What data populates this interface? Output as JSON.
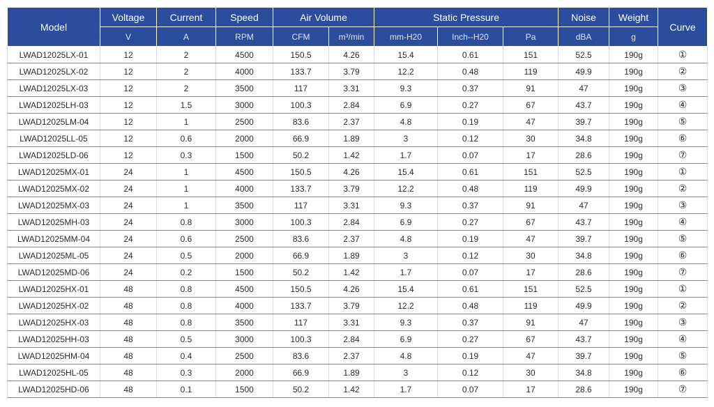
{
  "headers": {
    "model": "Model",
    "voltage": "Voltage",
    "current": "Current",
    "speed": "Speed",
    "air_volume": "Air Volume",
    "static_pressure": "Static Pressure",
    "noise": "Noise",
    "weight": "Weight",
    "curve": "Curve"
  },
  "units": [
    "V",
    "A",
    "RPM",
    "CFM",
    "m³/min",
    "mm-H20",
    "Inch--H20",
    "Pa",
    "dBA",
    "g"
  ],
  "rows": [
    [
      "LWAD12025LX-01",
      "12",
      "2",
      "4500",
      "150.5",
      "4.26",
      "15.4",
      "0.61",
      "151",
      "52.5",
      "190g",
      "①"
    ],
    [
      "LWAD12025LX-02",
      "12",
      "2",
      "4000",
      "133.7",
      "3.79",
      "12.2",
      "0.48",
      "119",
      "49.9",
      "190g",
      "②"
    ],
    [
      "LWAD12025LX-03",
      "12",
      "2",
      "3500",
      "117",
      "3.31",
      "9.3",
      "0.37",
      "91",
      "47",
      "190g",
      "③"
    ],
    [
      "LWAD12025LH-03",
      "12",
      "1.5",
      "3000",
      "100.3",
      "2.84",
      "6.9",
      "0.27",
      "67",
      "43.7",
      "190g",
      "④"
    ],
    [
      "LWAD12025LM-04",
      "12",
      "1",
      "2500",
      "83.6",
      "2.37",
      "4.8",
      "0.19",
      "47",
      "39.7",
      "190g",
      "⑤"
    ],
    [
      "LWAD12025LL-05",
      "12",
      "0.6",
      "2000",
      "66.9",
      "1.89",
      "3",
      "0.12",
      "30",
      "34.8",
      "190g",
      "⑥"
    ],
    [
      "LWAD12025LD-06",
      "12",
      "0.3",
      "1500",
      "50.2",
      "1.42",
      "1.7",
      "0.07",
      "17",
      "28.6",
      "190g",
      "⑦"
    ],
    [
      "LWAD12025MX-01",
      "24",
      "1",
      "4500",
      "150.5",
      "4.26",
      "15.4",
      "0.61",
      "151",
      "52.5",
      "190g",
      "①"
    ],
    [
      "LWAD12025MX-02",
      "24",
      "1",
      "4000",
      "133.7",
      "3.79",
      "12.2",
      "0.48",
      "119",
      "49.9",
      "190g",
      "②"
    ],
    [
      "LWAD12025MX-03",
      "24",
      "1",
      "3500",
      "117",
      "3.31",
      "9.3",
      "0.37",
      "91",
      "47",
      "190g",
      "③"
    ],
    [
      "LWAD12025MH-03",
      "24",
      "0.8",
      "3000",
      "100.3",
      "2.84",
      "6.9",
      "0.27",
      "67",
      "43.7",
      "190g",
      "④"
    ],
    [
      "LWAD12025MM-04",
      "24",
      "0.6",
      "2500",
      "83.6",
      "2.37",
      "4.8",
      "0.19",
      "47",
      "39.7",
      "190g",
      "⑤"
    ],
    [
      "LWAD12025ML-05",
      "24",
      "0.5",
      "2000",
      "66.9",
      "1.89",
      "3",
      "0.12",
      "30",
      "34.8",
      "190g",
      "⑥"
    ],
    [
      "LWAD12025MD-06",
      "24",
      "0.2",
      "1500",
      "50.2",
      "1.42",
      "1.7",
      "0.07",
      "17",
      "28.6",
      "190g",
      "⑦"
    ],
    [
      "LWAD12025HX-01",
      "48",
      "0.8",
      "4500",
      "150.5",
      "4.26",
      "15.4",
      "0.61",
      "151",
      "52.5",
      "190g",
      "①"
    ],
    [
      "LWAD12025HX-02",
      "48",
      "0.8",
      "4000",
      "133.7",
      "3.79",
      "12.2",
      "0.48",
      "119",
      "49.9",
      "190g",
      "②"
    ],
    [
      "LWAD12025HX-03",
      "48",
      "0.8",
      "3500",
      "117",
      "3.31",
      "9.3",
      "0.37",
      "91",
      "47",
      "190g",
      "③"
    ],
    [
      "LWAD12025HH-03",
      "48",
      "0.5",
      "3000",
      "100.3",
      "2.84",
      "6.9",
      "0.27",
      "67",
      "43.7",
      "190g",
      "④"
    ],
    [
      "LWAD12025HM-04",
      "48",
      "0.4",
      "2500",
      "83.6",
      "2.37",
      "4.8",
      "0.19",
      "47",
      "39.7",
      "190g",
      "⑤"
    ],
    [
      "LWAD12025HL-05",
      "48",
      "0.3",
      "2000",
      "66.9",
      "1.89",
      "3",
      "0.12",
      "30",
      "34.8",
      "190g",
      "⑥"
    ],
    [
      "LWAD12025HD-06",
      "48",
      "0.1",
      "1500",
      "50.2",
      "1.42",
      "1.7",
      "0.07",
      "17",
      "28.6",
      "190g",
      "⑦"
    ]
  ],
  "colors": {
    "header_bg": "#2b4d9b",
    "header_text": "#ffffff"
  }
}
